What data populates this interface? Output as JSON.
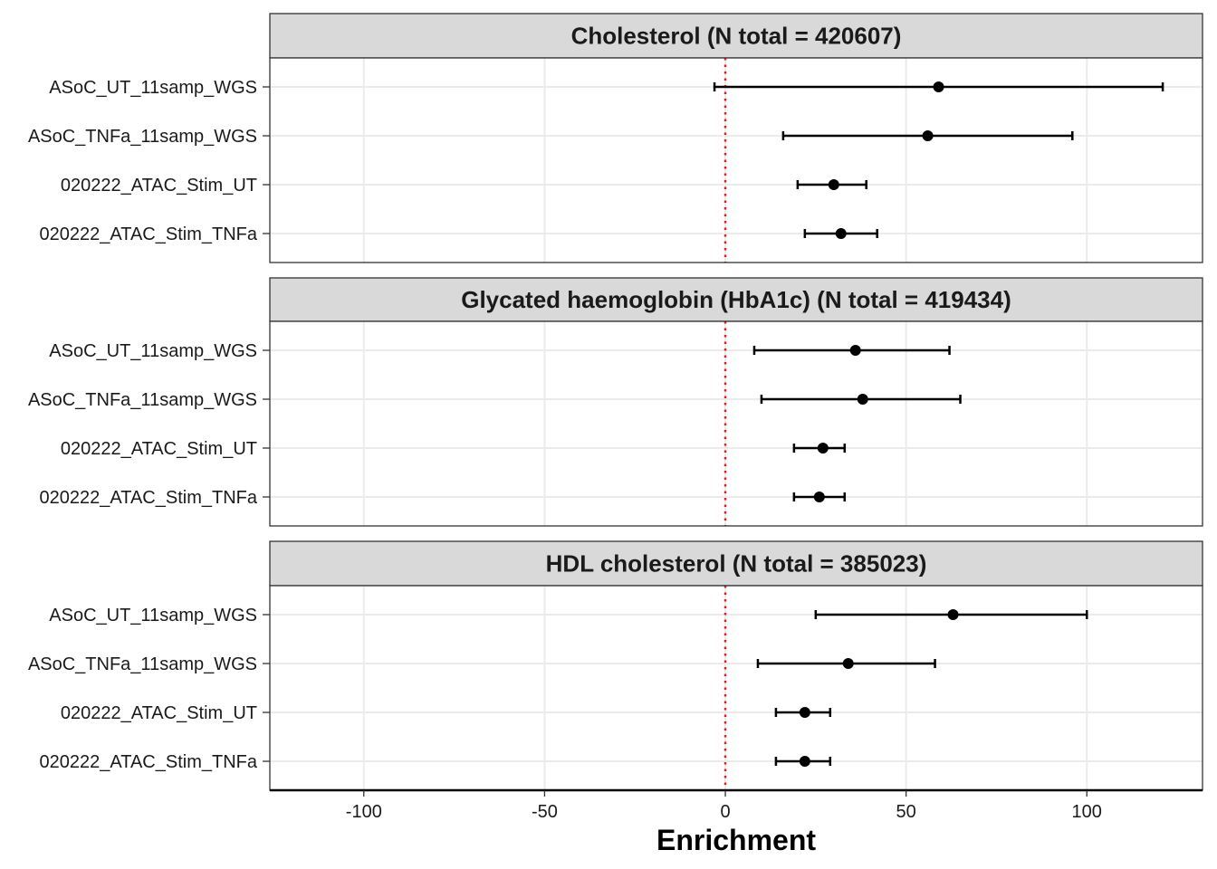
{
  "chart_data": {
    "type": "scatter",
    "subtype": "forest-plot",
    "xlabel": "Enrichment",
    "xlim": [
      -126,
      132
    ],
    "xticks": [
      -100,
      -50,
      0,
      50,
      100
    ],
    "reference_line": {
      "x": 0,
      "style": "dotted",
      "color": "#e41a1c"
    },
    "categories": [
      "ASoC_UT_11samp_WGS",
      "ASoC_TNFa_11samp_WGS",
      "020222_ATAC_Stim_UT",
      "020222_ATAC_Stim_TNFa"
    ],
    "grid": true,
    "panels": [
      {
        "title": "Cholesterol (N total = 420607)",
        "points": [
          {
            "category": "ASoC_UT_11samp_WGS",
            "estimate": 59,
            "lower": -3,
            "upper": 121
          },
          {
            "category": "ASoC_TNFa_11samp_WGS",
            "estimate": 56,
            "lower": 16,
            "upper": 96
          },
          {
            "category": "020222_ATAC_Stim_UT",
            "estimate": 30,
            "lower": 20,
            "upper": 39
          },
          {
            "category": "020222_ATAC_Stim_TNFa",
            "estimate": 32,
            "lower": 22,
            "upper": 42
          }
        ]
      },
      {
        "title": "Glycated haemoglobin (HbA1c) (N total = 419434)",
        "points": [
          {
            "category": "ASoC_UT_11samp_WGS",
            "estimate": 36,
            "lower": 8,
            "upper": 62
          },
          {
            "category": "ASoC_TNFa_11samp_WGS",
            "estimate": 38,
            "lower": 10,
            "upper": 65
          },
          {
            "category": "020222_ATAC_Stim_UT",
            "estimate": 27,
            "lower": 19,
            "upper": 33
          },
          {
            "category": "020222_ATAC_Stim_TNFa",
            "estimate": 26,
            "lower": 19,
            "upper": 33
          }
        ]
      },
      {
        "title": "HDL cholesterol (N total = 385023)",
        "points": [
          {
            "category": "ASoC_UT_11samp_WGS",
            "estimate": 63,
            "lower": 25,
            "upper": 100
          },
          {
            "category": "ASoC_TNFa_11samp_WGS",
            "estimate": 34,
            "lower": 9,
            "upper": 58
          },
          {
            "category": "020222_ATAC_Stim_UT",
            "estimate": 22,
            "lower": 14,
            "upper": 29
          },
          {
            "category": "020222_ATAC_Stim_TNFa",
            "estimate": 22,
            "lower": 14,
            "upper": 29
          }
        ]
      }
    ]
  }
}
